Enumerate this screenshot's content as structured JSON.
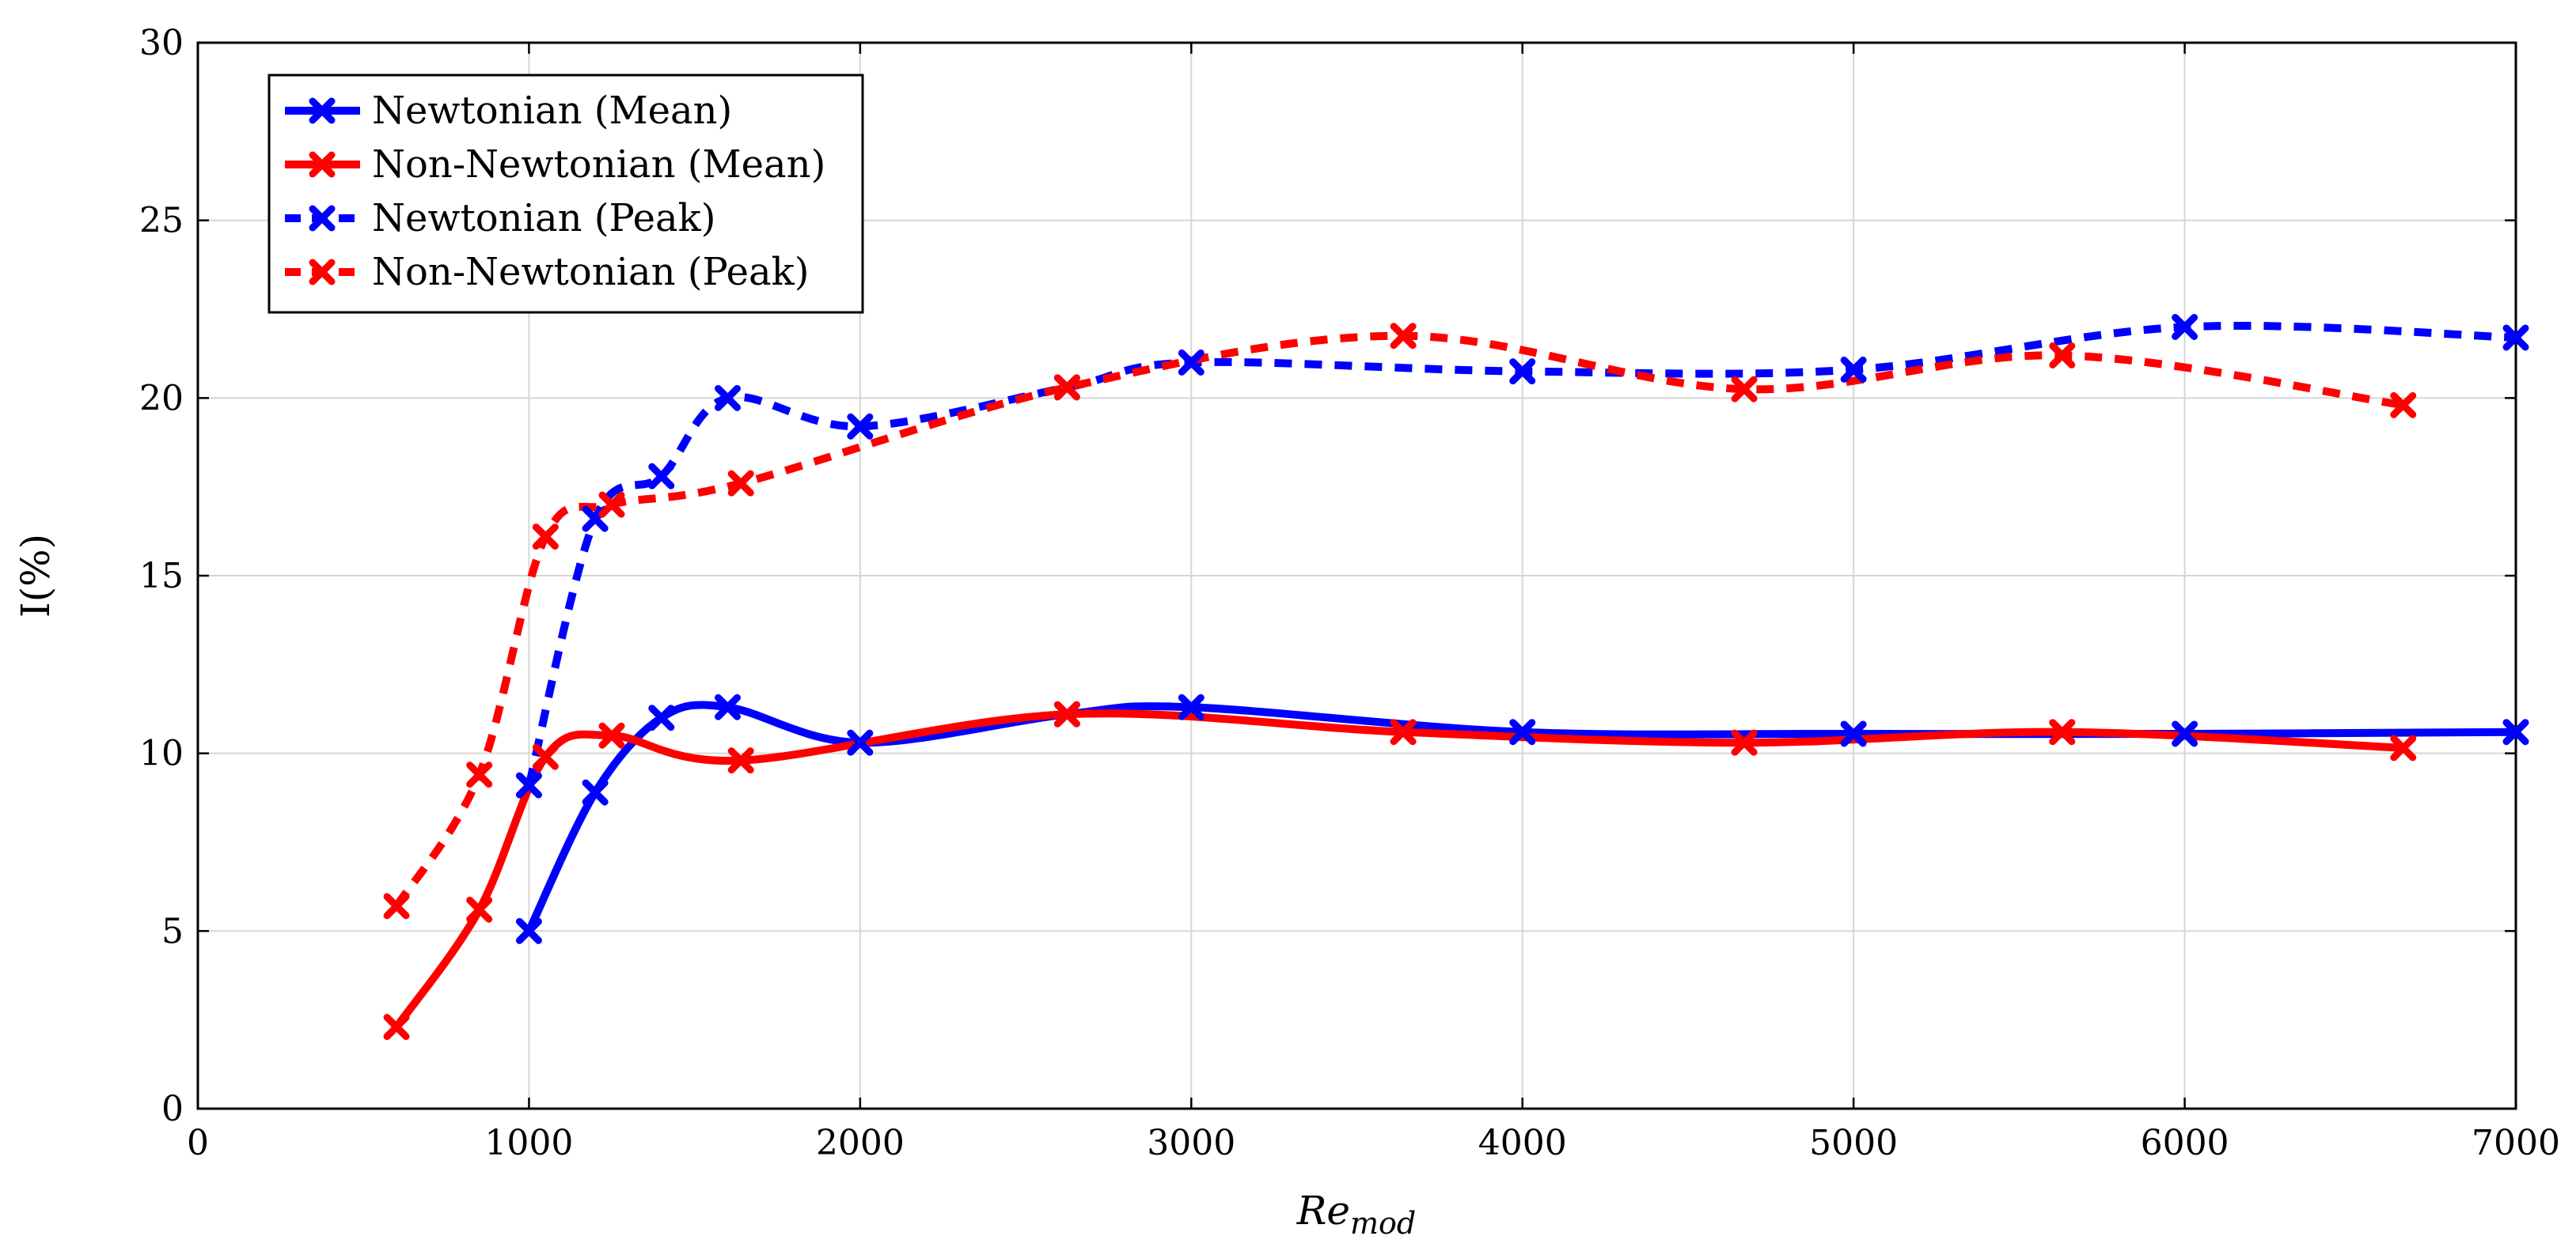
{
  "chart_data": {
    "type": "line",
    "title": "",
    "xlabel": "Re",
    "xlabel_sub": "mod",
    "ylabel": "I(%)",
    "xlim": [
      0,
      7000
    ],
    "ylim": [
      0,
      30
    ],
    "xticks": [
      0,
      1000,
      2000,
      3000,
      4000,
      5000,
      6000,
      7000
    ],
    "yticks": [
      0,
      5,
      10,
      15,
      20,
      25,
      30
    ],
    "grid": true,
    "legend_position": "top-left",
    "series": [
      {
        "name": "Newtonian (Mean)",
        "color": "#0000ff",
        "style": "solid",
        "marker": "x",
        "x": [
          1000,
          1200,
          1400,
          1600,
          2000,
          2625,
          3000,
          4000,
          5000,
          6000,
          7000
        ],
        "y": [
          5.0,
          8.9,
          11.0,
          11.3,
          10.3,
          11.1,
          11.3,
          10.6,
          10.55,
          10.55,
          10.6
        ]
      },
      {
        "name": "Non-Newtonian (Mean)",
        "color": "#ff0000",
        "style": "solid",
        "marker": "x",
        "x": [
          600,
          850,
          1050,
          1250,
          1640,
          2625,
          3640,
          4670,
          5630,
          6660
        ],
        "y": [
          2.3,
          5.6,
          9.9,
          10.5,
          9.8,
          11.1,
          10.6,
          10.3,
          10.6,
          10.15
        ]
      },
      {
        "name": "Newtonian (Peak)",
        "color": "#0000ff",
        "style": "dashed",
        "marker": "x",
        "x": [
          1000,
          1200,
          1400,
          1600,
          2000,
          2625,
          3000,
          4000,
          5000,
          6000,
          7000
        ],
        "y": [
          9.1,
          16.6,
          17.8,
          20.0,
          19.2,
          20.3,
          21.0,
          20.75,
          20.8,
          22.0,
          21.7
        ]
      },
      {
        "name": "Non-Newtonian (Peak)",
        "color": "#ff0000",
        "style": "dashed",
        "marker": "x",
        "x": [
          600,
          850,
          1050,
          1250,
          1640,
          2625,
          3640,
          4670,
          5630,
          6660
        ],
        "y": [
          5.7,
          9.4,
          16.1,
          17.0,
          17.6,
          20.3,
          21.75,
          20.25,
          21.2,
          19.8
        ]
      }
    ]
  }
}
